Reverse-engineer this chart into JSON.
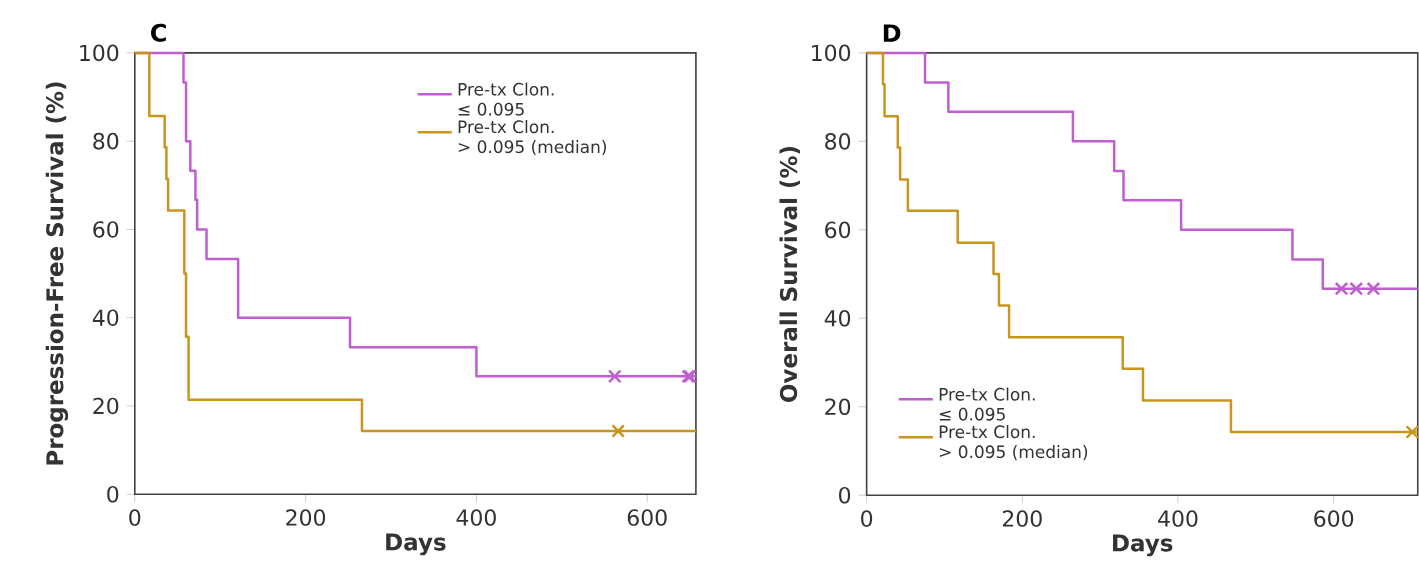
{
  "chart_data": [
    {
      "type": "step",
      "title": "C",
      "xlabel": "Days",
      "ylabel": "Progression-Free Survival (%)",
      "xlim": [
        0,
        657
      ],
      "ylim": [
        0,
        100
      ],
      "xticks": [
        0,
        200,
        400,
        600
      ],
      "yticks": [
        0,
        20,
        40,
        60,
        80,
        100
      ],
      "grid": false,
      "legend": "top right",
      "series": [
        {
          "name": "Pre-tx Clon. ≤ 0.095",
          "color": "#bf5fcf",
          "x": [
            0,
            57,
            60,
            65,
            71,
            73,
            84,
            121,
            252,
            400,
            657
          ],
          "values": [
            100,
            93.3,
            80,
            73.3,
            66.7,
            60,
            53.3,
            40,
            33.3,
            26.7,
            26.7
          ]
        },
        {
          "name": "Pre-tx Clon. > 0.095 (median)",
          "color": "#c8961e",
          "x": [
            0,
            17,
            35,
            37,
            39,
            58,
            60,
            63,
            266,
            657
          ],
          "values": [
            100,
            85.7,
            78.6,
            71.4,
            64.3,
            50,
            35.7,
            21.4,
            14.3,
            14.3
          ]
        },
        {
          "type": "scatter",
          "marker": "cross",
          "color": "#bf5fcf",
          "x": [
            562,
            648,
            650
          ],
          "values": [
            26.7,
            26.7,
            26.7
          ]
        },
        {
          "type": "scatter",
          "marker": "cross",
          "color": "#c8961e",
          "x": [
            566
          ],
          "values": [
            14.3
          ]
        }
      ]
    },
    {
      "type": "step",
      "title": "D",
      "xlabel": "Days",
      "ylabel": "Overall Survival (%)",
      "xlim": [
        0,
        708
      ],
      "ylim": [
        0,
        100
      ],
      "xticks": [
        0,
        200,
        400,
        600
      ],
      "yticks": [
        0,
        20,
        40,
        60,
        80,
        100
      ],
      "grid": false,
      "legend": "bottom left",
      "series": [
        {
          "name": "Pre-tx Clon. ≤ 0.095",
          "color": "#bf5fcf",
          "x": [
            0,
            75,
            105,
            265,
            318,
            330,
            404,
            547,
            586,
            708
          ],
          "values": [
            100,
            93.3,
            86.7,
            80,
            73.3,
            66.7,
            60,
            53.3,
            46.7,
            46.7
          ]
        },
        {
          "name": "Pre-tx Clon. > 0.095 (median)",
          "color": "#c8961e",
          "x": [
            0,
            21,
            23,
            40,
            43,
            53,
            117,
            163,
            170,
            183,
            329,
            355,
            468,
            708
          ],
          "values": [
            100,
            92.9,
            85.7,
            78.6,
            71.4,
            64.3,
            57.1,
            50,
            42.9,
            35.7,
            28.6,
            21.4,
            14.3,
            14.3
          ]
        },
        {
          "type": "scatter",
          "marker": "cross",
          "color": "#bf5fcf",
          "x": [
            610,
            629,
            651
          ],
          "values": [
            46.7,
            46.7,
            46.7
          ]
        },
        {
          "type": "scatter",
          "marker": "cross",
          "color": "#c8961e",
          "x": [
            701
          ],
          "values": [
            14.3
          ]
        }
      ]
    }
  ]
}
